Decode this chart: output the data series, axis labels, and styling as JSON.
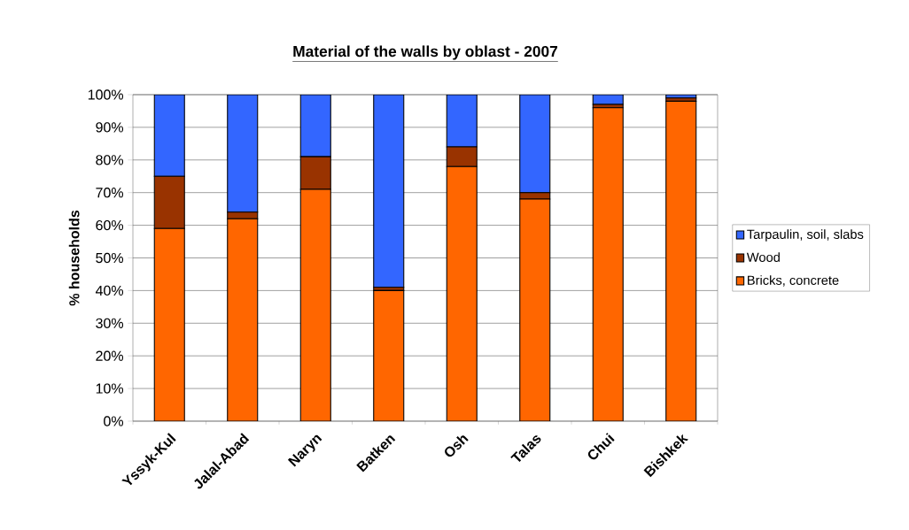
{
  "chart_data": {
    "type": "bar",
    "stacked": true,
    "title": "Material of the walls by oblast - 2007",
    "ylabel": "% households",
    "categories": [
      "Yssyk-Kul",
      "Jalal-Abad",
      "Naryn",
      "Batken",
      "Osh",
      "Talas",
      "Chui",
      "Bishkek"
    ],
    "series": [
      {
        "name": "Bricks, concrete",
        "color": "#ff6600",
        "values": [
          59,
          62,
          71,
          40,
          78,
          68,
          96,
          98
        ]
      },
      {
        "name": "Wood",
        "color": "#993300",
        "values": [
          16,
          2,
          10,
          1,
          6,
          2,
          1,
          1
        ]
      },
      {
        "name": "Tarpaulin, soil, slabs",
        "color": "#3366ff",
        "values": [
          25,
          36,
          19,
          59,
          16,
          30,
          3,
          1
        ]
      }
    ],
    "ylim": [
      0,
      100
    ],
    "yticks": [
      {
        "value": 0,
        "label": "0%"
      },
      {
        "value": 10,
        "label": "10%"
      },
      {
        "value": 20,
        "label": "20%"
      },
      {
        "value": 30,
        "label": "30%"
      },
      {
        "value": 40,
        "label": "40%"
      },
      {
        "value": 50,
        "label": "50%"
      },
      {
        "value": 60,
        "label": "60%"
      },
      {
        "value": 70,
        "label": "70%"
      },
      {
        "value": 80,
        "label": "80%"
      },
      {
        "value": 90,
        "label": "90%"
      },
      {
        "value": 100,
        "label": "100%"
      }
    ],
    "grid": "y",
    "legend": "right"
  }
}
